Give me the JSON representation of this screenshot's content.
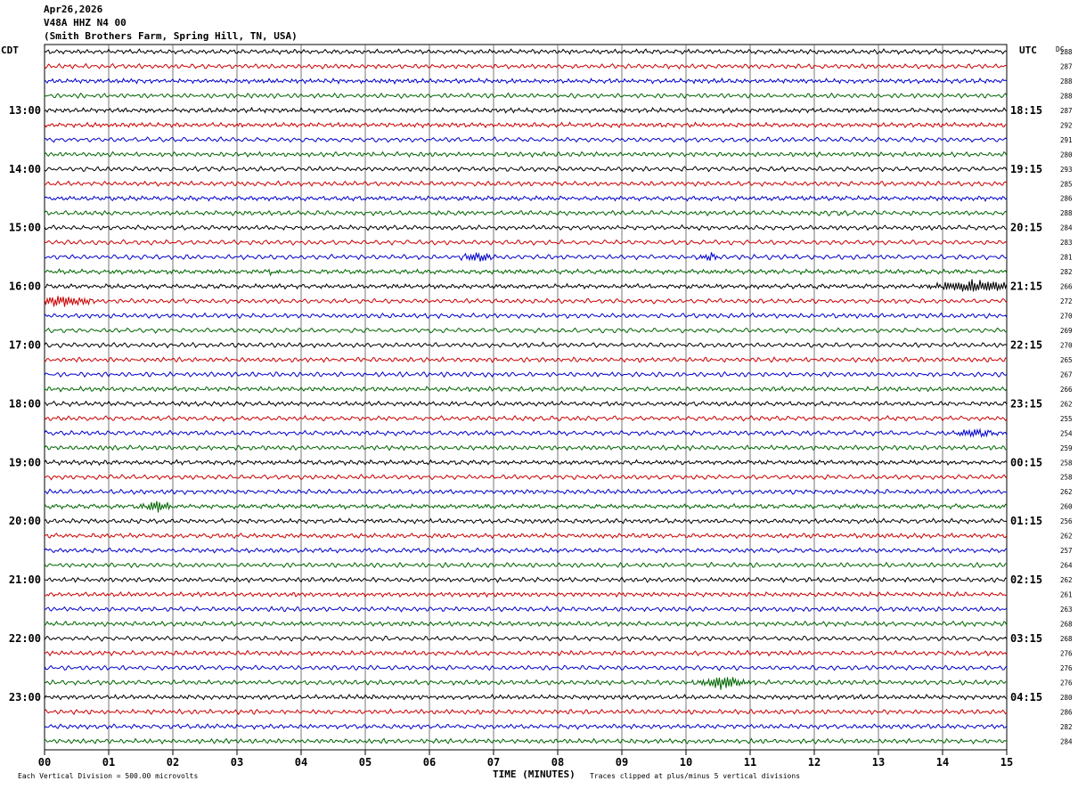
{
  "header": {
    "date": "Apr26,2026",
    "station": "V48A HHZ N4 00",
    "location": "(Smith Brothers Farm, Spring Hill, TN, USA)"
  },
  "left_timezone": "CDT",
  "right_timezone": "UTC",
  "dc_label": "DC",
  "footer": {
    "vertical_division": "Each Vertical Division =  500.00 microvolts",
    "clip_note": "Traces clipped at plus/minus 5 vertical divisions"
  },
  "colors": {
    "traces": [
      "#000000",
      "#cc0000",
      "#0000cc",
      "#006600"
    ],
    "grid": "#000000",
    "background": "#ffffff"
  },
  "chart_data": {
    "type": "line",
    "title": "Apr26,2026 V48A HHZ N4 00",
    "xlabel": "TIME (MINUTES)",
    "xlim": [
      0,
      15
    ],
    "x_ticks": [
      "00",
      "01",
      "02",
      "03",
      "04",
      "05",
      "06",
      "07",
      "08",
      "09",
      "10",
      "11",
      "12",
      "13",
      "14",
      "15"
    ],
    "row_count": 48,
    "left_time_labels": [
      {
        "row": 4,
        "label": "13:00"
      },
      {
        "row": 8,
        "label": "14:00"
      },
      {
        "row": 12,
        "label": "15:00"
      },
      {
        "row": 16,
        "label": "16:00"
      },
      {
        "row": 20,
        "label": "17:00"
      },
      {
        "row": 24,
        "label": "18:00"
      },
      {
        "row": 28,
        "label": "19:00"
      },
      {
        "row": 32,
        "label": "20:00"
      },
      {
        "row": 36,
        "label": "21:00"
      },
      {
        "row": 40,
        "label": "22:00"
      },
      {
        "row": 44,
        "label": "23:00"
      }
    ],
    "right_time_labels": [
      {
        "row": 4,
        "label": "18:15"
      },
      {
        "row": 8,
        "label": "19:15"
      },
      {
        "row": 12,
        "label": "20:15"
      },
      {
        "row": 16,
        "label": "21:15"
      },
      {
        "row": 20,
        "label": "22:15"
      },
      {
        "row": 24,
        "label": "23:15"
      },
      {
        "row": 28,
        "label": "00:15"
      },
      {
        "row": 32,
        "label": "01:15"
      },
      {
        "row": 36,
        "label": "02:15"
      },
      {
        "row": 40,
        "label": "03:15"
      },
      {
        "row": 44,
        "label": "04:15"
      }
    ],
    "dc_offsets": [
      "288",
      "287",
      "288",
      "288",
      "287",
      "292",
      "291",
      "280",
      "293",
      "285",
      "286",
      "288",
      "284",
      "283",
      "281",
      "282",
      "266",
      "272",
      "270",
      "269",
      "270",
      "265",
      "267",
      "266",
      "262",
      "255",
      "254",
      "259",
      "258",
      "258",
      "262",
      "260",
      "256",
      "262",
      "257",
      "264",
      "262",
      "261",
      "263",
      "268",
      "268",
      "276",
      "276",
      "276",
      "280",
      "286",
      "282",
      "284"
    ],
    "events": [
      {
        "row": 15,
        "minute": 3.6,
        "amplitude": 2.0,
        "duration": 0.15
      },
      {
        "row": 14,
        "minute": 6.75,
        "amplitude": 1.3,
        "duration": 0.3
      },
      {
        "row": 14,
        "minute": 10.35,
        "amplitude": 1.1,
        "duration": 0.2
      },
      {
        "row": 31,
        "minute": 1.75,
        "amplitude": 1.3,
        "duration": 0.3
      },
      {
        "row": 43,
        "minute": 10.6,
        "amplitude": 1.8,
        "duration": 0.6
      },
      {
        "row": 11,
        "minute": 12.25,
        "amplitude": 1.0,
        "duration": 0.5
      },
      {
        "row": 16,
        "minute": 14.5,
        "amplitude": 1.5,
        "duration": 1.0
      },
      {
        "row": 17,
        "minute": 0.3,
        "amplitude": 1.2,
        "duration": 0.6
      },
      {
        "row": 26,
        "minute": 14.5,
        "amplitude": 1.0,
        "duration": 0.5
      }
    ]
  }
}
